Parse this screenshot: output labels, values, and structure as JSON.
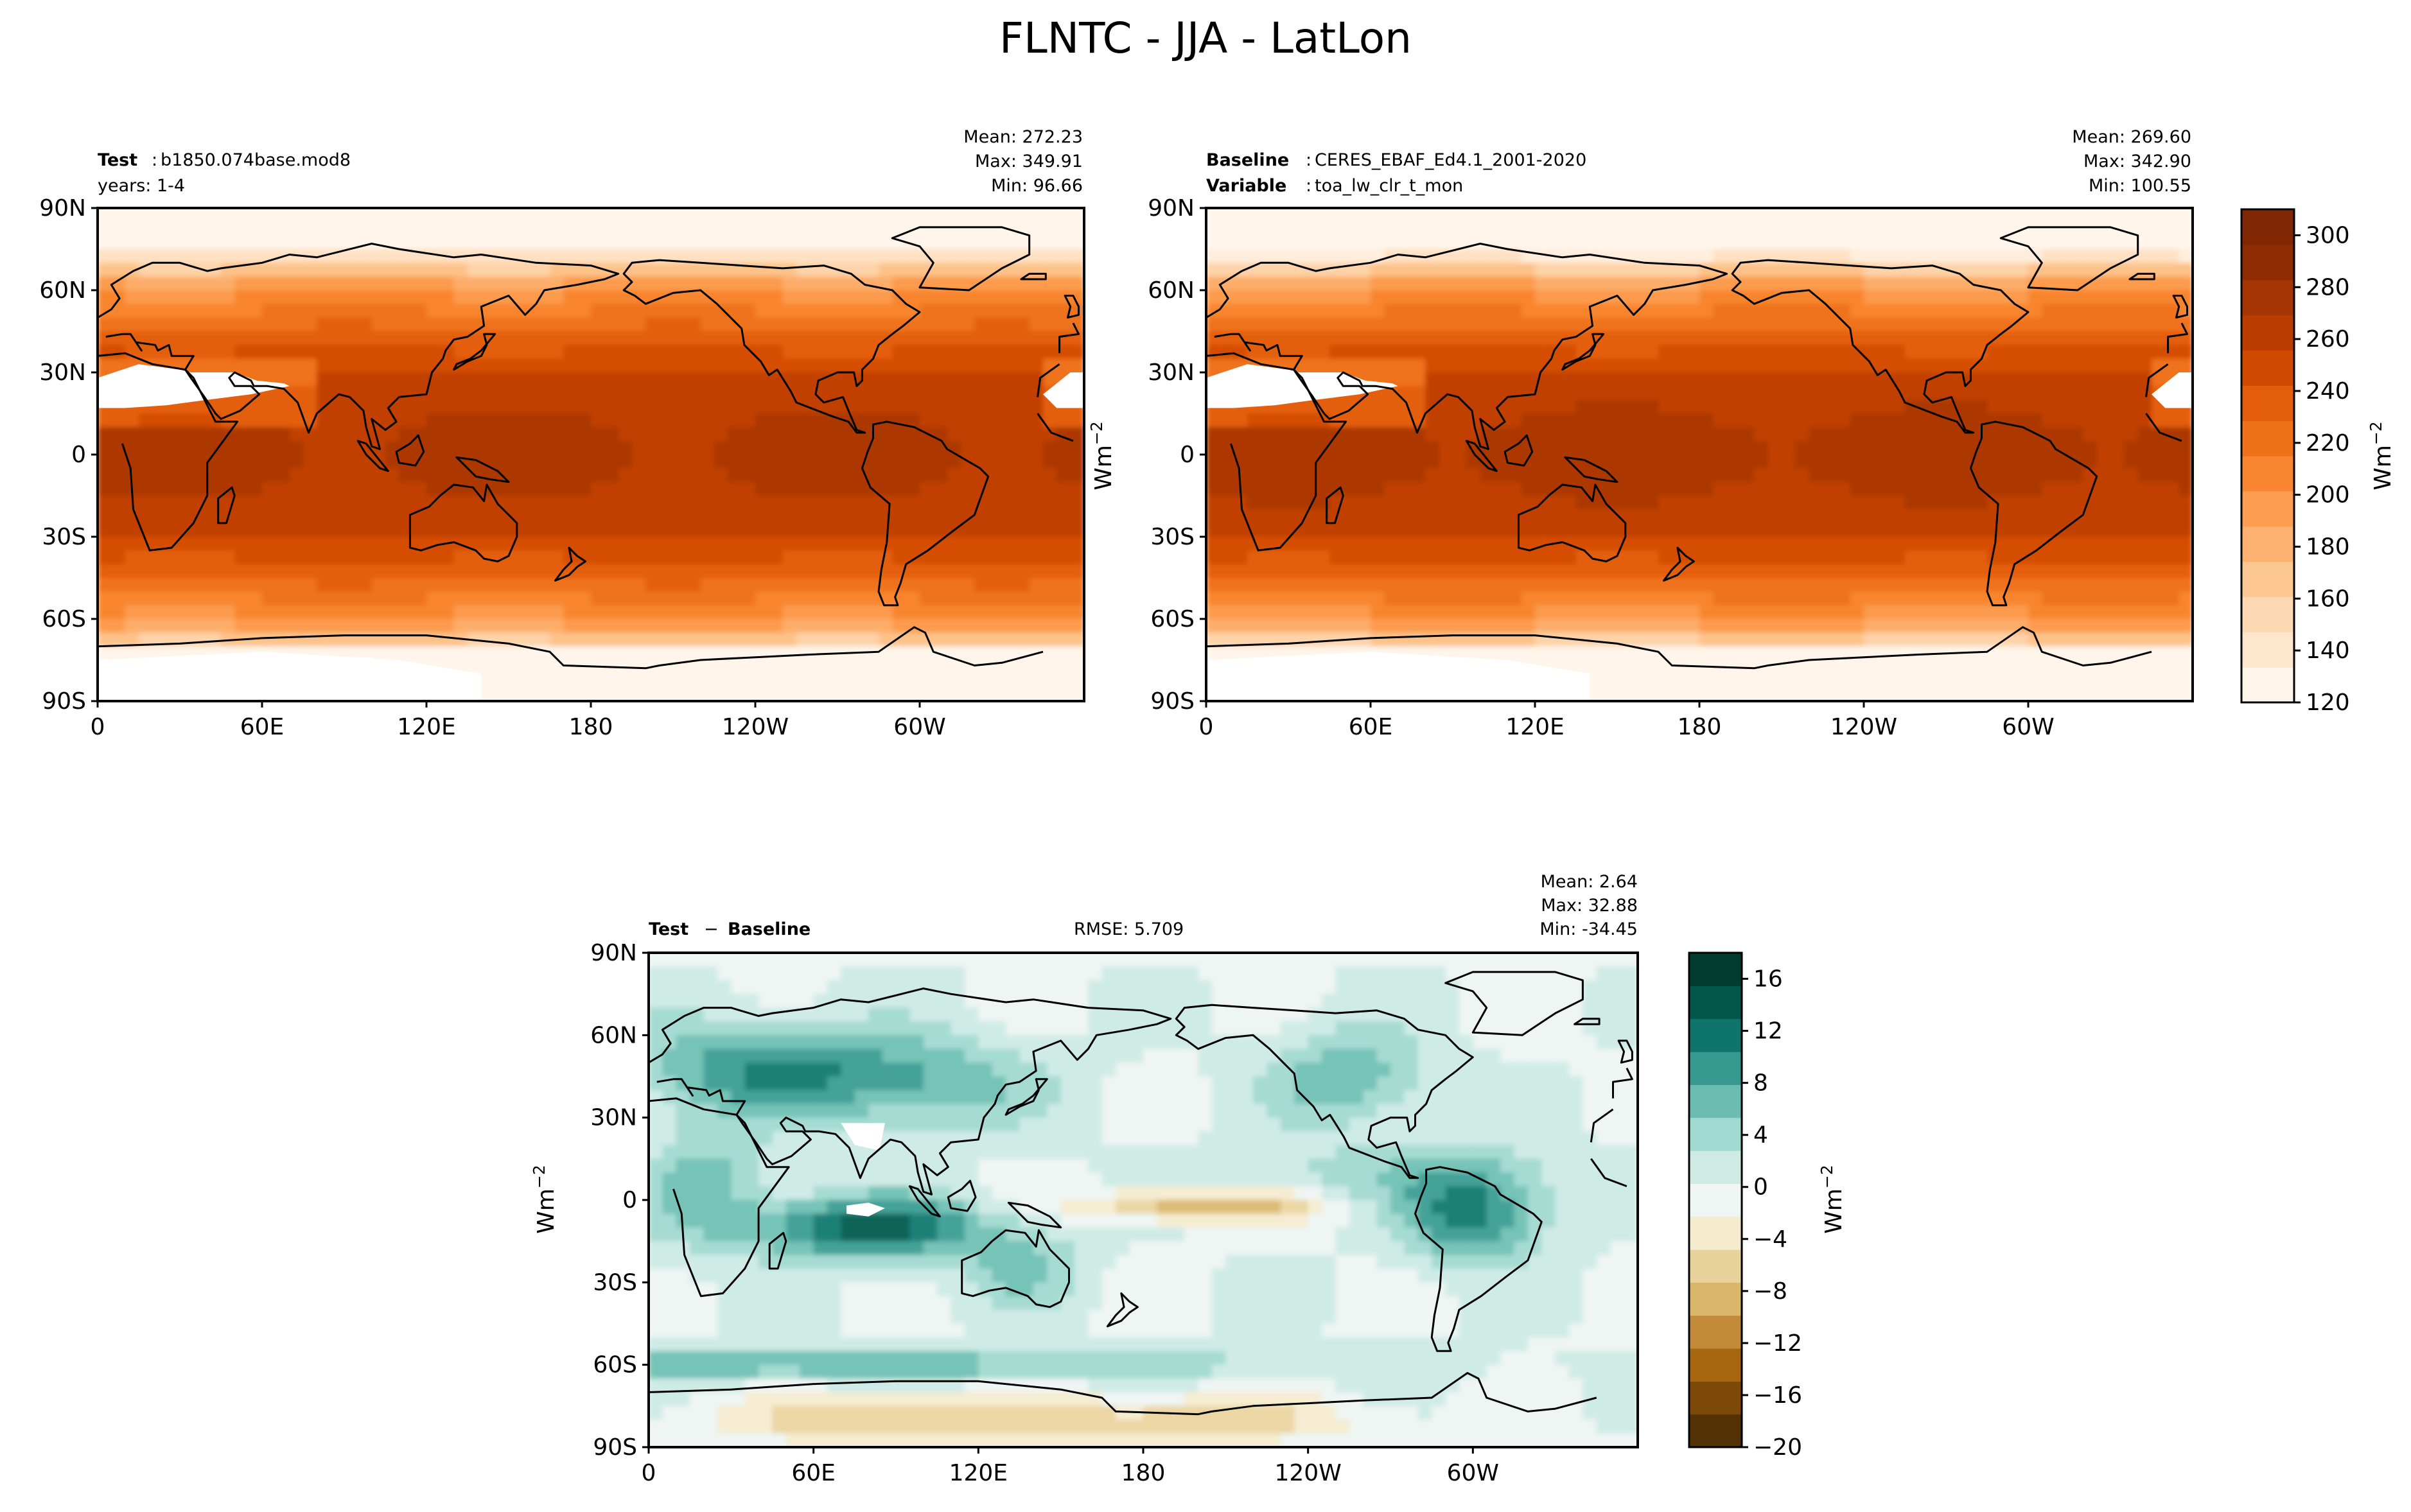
{
  "title": "FLNTC - JJA - LatLon",
  "unit_label": "Wm",
  "unit_exp": "−2",
  "lat_ticks": [
    "90N",
    "60N",
    "30N",
    "0",
    "30S",
    "60S",
    "90S"
  ],
  "lon_ticks": [
    "0",
    "60E",
    "120E",
    "180",
    "120W",
    "60W"
  ],
  "colors": {
    "oranges": [
      "#fff5eb",
      "#fee6ce",
      "#fdd9b3",
      "#fdc793",
      "#fdb170",
      "#fd9d51",
      "#f88630",
      "#ef7119",
      "#e35d0a",
      "#d14a02",
      "#bb3d02",
      "#a53503",
      "#8e2b03",
      "#7f2704"
    ],
    "brbg": [
      "#543005",
      "#7d4909",
      "#a6670f",
      "#c28b3a",
      "#d9b66a",
      "#e9d39d",
      "#f5ebcf",
      "#eef5f3",
      "#cdeae5",
      "#a0d9cf",
      "#6cbdb1",
      "#379890",
      "#0f746b",
      "#01574a",
      "#003c30"
    ]
  },
  "chart_data": [
    {
      "type": "heatmap",
      "name": "test",
      "panel_label": {
        "key": "Test",
        "value": "b1850.074base.mod8"
      },
      "subtitle": "years: 1-4",
      "stats": {
        "mean": "Mean: 272.23",
        "max": "Max: 349.91",
        "min": "Min: 96.66"
      },
      "xlim": [
        0,
        360
      ],
      "ylim": [
        -90,
        90
      ],
      "z_range": [
        96.66,
        349.91
      ]
    },
    {
      "type": "heatmap",
      "name": "baseline",
      "panel_label": {
        "key": "Baseline",
        "value": "CERES_EBAF_Ed4.1_2001-2020"
      },
      "panel_label2": {
        "key": "Variable",
        "value": "toa_lw_clr_t_mon"
      },
      "stats": {
        "mean": "Mean: 269.60",
        "max": "Max: 342.90",
        "min": "Min: 100.55"
      },
      "xlim": [
        0,
        360
      ],
      "ylim": [
        -90,
        90
      ],
      "z_range": [
        100.55,
        342.9
      ],
      "colorbar": {
        "ticks": [
          "120",
          "140",
          "160",
          "180",
          "200",
          "220",
          "240",
          "260",
          "280",
          "300"
        ],
        "range": [
          120,
          310
        ]
      }
    },
    {
      "type": "heatmap",
      "name": "difference",
      "panel_label": {
        "key": "Test",
        "op": "−",
        "value": "Baseline"
      },
      "rmse": "RMSE: 5.709",
      "stats": {
        "mean": "Mean:  2.64",
        "max": "Max: 32.88",
        "min": "Min: -34.45"
      },
      "xlim": [
        0,
        360
      ],
      "ylim": [
        -90,
        90
      ],
      "z_range": [
        -34.45,
        32.88
      ],
      "colorbar": {
        "ticks": [
          "−20",
          "−16",
          "−12",
          "−8",
          "−4",
          "0",
          "4",
          "8",
          "12",
          "16"
        ],
        "range": [
          -20,
          18
        ]
      }
    }
  ]
}
